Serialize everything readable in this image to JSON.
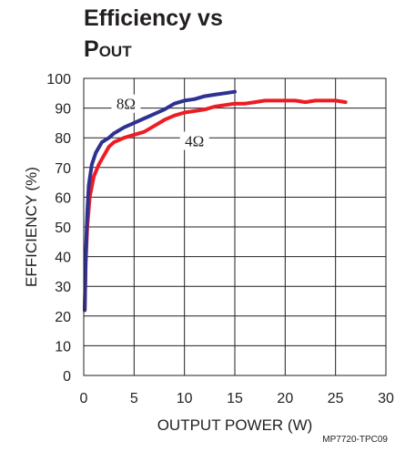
{
  "figure": {
    "title_line1": "Efficiency vs",
    "title_line2_main": "P",
    "title_line2_sub": "OUT",
    "figure_id": "MP7720-TPC09"
  },
  "chart_data": {
    "type": "line",
    "title": "Efficiency vs POUT",
    "xlabel": "OUTPUT POWER (W)",
    "ylabel": "EFFICIENCY (%)",
    "xlim": [
      0,
      30
    ],
    "ylim": [
      0,
      100
    ],
    "xticks": [
      0,
      5,
      10,
      15,
      20,
      25,
      30
    ],
    "yticks": [
      0,
      10,
      20,
      30,
      40,
      50,
      60,
      70,
      80,
      90,
      100
    ],
    "grid": true,
    "series": [
      {
        "name": "8Ω",
        "color": "#2e3192",
        "points": [
          [
            0.1,
            22
          ],
          [
            0.2,
            40
          ],
          [
            0.35,
            55
          ],
          [
            0.5,
            64
          ],
          [
            0.8,
            71
          ],
          [
            1.2,
            75
          ],
          [
            1.8,
            78.5
          ],
          [
            2.5,
            80
          ],
          [
            3,
            81.5
          ],
          [
            4,
            83.5
          ],
          [
            5,
            85
          ],
          [
            6,
            86.5
          ],
          [
            7,
            88
          ],
          [
            8,
            89.5
          ],
          [
            9,
            91.5
          ],
          [
            10,
            92.5
          ],
          [
            11,
            93
          ],
          [
            12,
            94
          ],
          [
            13,
            94.5
          ],
          [
            14,
            95
          ],
          [
            15,
            95.5
          ]
        ]
      },
      {
        "name": "4Ω",
        "color": "#ed1c24",
        "points": [
          [
            0.1,
            22
          ],
          [
            0.2,
            38
          ],
          [
            0.35,
            50
          ],
          [
            0.6,
            60
          ],
          [
            1,
            67
          ],
          [
            1.5,
            71
          ],
          [
            2,
            74
          ],
          [
            2.5,
            77
          ],
          [
            3,
            78.5
          ],
          [
            4,
            80
          ],
          [
            5,
            81
          ],
          [
            6,
            82
          ],
          [
            7,
            84
          ],
          [
            8,
            86
          ],
          [
            9,
            87.5
          ],
          [
            10,
            88.5
          ],
          [
            11,
            89
          ],
          [
            12,
            89.5
          ],
          [
            13,
            90.5
          ],
          [
            14,
            91
          ],
          [
            15,
            91.5
          ],
          [
            16,
            91.5
          ],
          [
            17,
            92
          ],
          [
            18,
            92.5
          ],
          [
            19,
            92.5
          ],
          [
            20,
            92.5
          ],
          [
            21,
            92.5
          ],
          [
            22,
            92
          ],
          [
            23,
            92.5
          ],
          [
            24,
            92.5
          ],
          [
            25,
            92.5
          ],
          [
            26,
            92
          ]
        ]
      }
    ]
  }
}
